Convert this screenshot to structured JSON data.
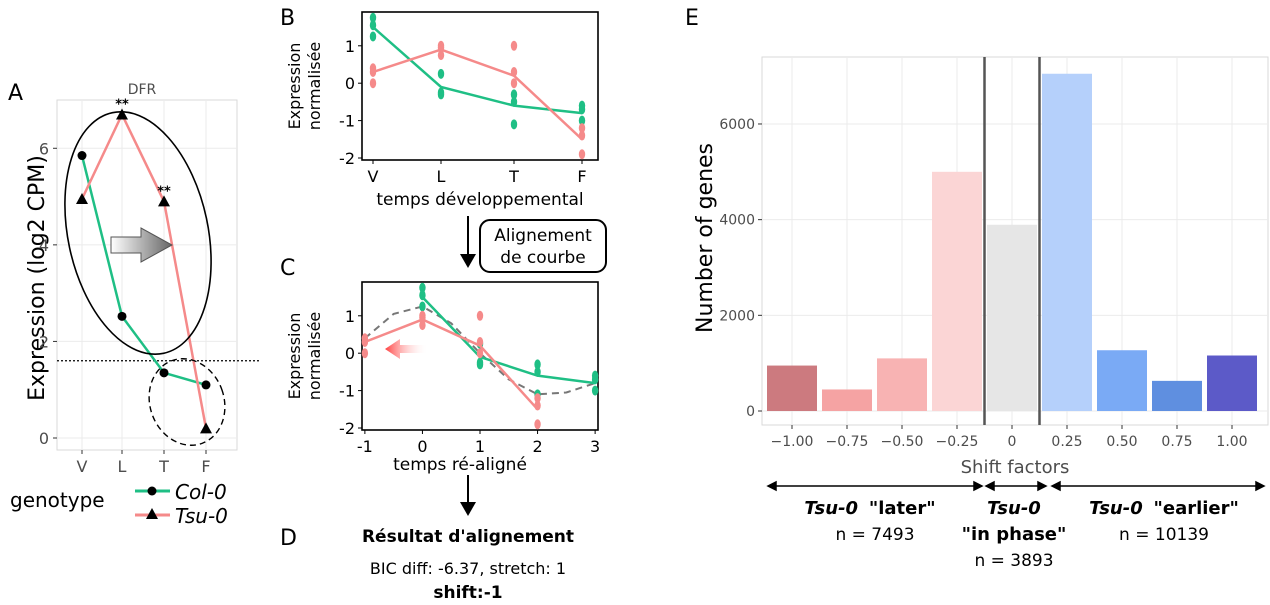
{
  "panel_letters": {
    "A": "A",
    "B": "B",
    "C": "C",
    "D": "D",
    "E": "E"
  },
  "colors": {
    "col0": "#1fbf85",
    "tsu0": "#f58a8a",
    "grid": "#ebebeb",
    "ref_line": "#000000"
  },
  "chart_data": [
    {
      "id": "A",
      "type": "line",
      "title": "DFR",
      "ylabel": "Expression (log2 CPM)",
      "categories": [
        "V",
        "L",
        "T",
        "F"
      ],
      "yticks": [
        0,
        2,
        4,
        6
      ],
      "ylim": [
        0,
        7.0
      ],
      "threshold_y": 1.6,
      "significance": [
        {
          "x": "L",
          "label": "**"
        },
        {
          "x": "T",
          "label": "**"
        }
      ],
      "series": [
        {
          "name": "Col-0",
          "values": [
            5.85,
            2.52,
            1.35,
            1.1
          ],
          "marker": "circle"
        },
        {
          "name": "Tsu-0",
          "values": [
            4.95,
            6.7,
            4.9,
            0.2
          ],
          "marker": "triangle"
        }
      ],
      "legend": {
        "title": "genotype",
        "placement": "bottom"
      }
    },
    {
      "id": "B",
      "type": "line",
      "ylabel": [
        "Expression",
        "normalisée"
      ],
      "xlabel": "temps développemental",
      "categories": [
        "V",
        "L",
        "T",
        "F"
      ],
      "yticks": [
        -2,
        -1,
        0,
        1
      ],
      "ylim": [
        -2,
        1.85
      ],
      "series": [
        {
          "name": "Col-0",
          "values": [
            1.5,
            -0.1,
            -0.6,
            -0.8
          ],
          "points": [
            [
              1.75,
              1.55,
              1.25
            ],
            [
              0.25,
              -0.25,
              -0.3
            ],
            [
              -1.1,
              -0.3,
              -0.5
            ],
            [
              -0.6,
              -0.7,
              -1.0
            ]
          ]
        },
        {
          "name": "Tsu-0",
          "values": [
            0.3,
            0.9,
            0.2,
            -1.5
          ],
          "points": [
            [
              0.0,
              0.3,
              0.4
            ],
            [
              0.75,
              0.95,
              1.0
            ],
            [
              0.0,
              0.3,
              1.0
            ],
            [
              -1.2,
              -1.4,
              -1.9
            ]
          ]
        }
      ]
    },
    {
      "id": "C",
      "type": "line",
      "ylabel": [
        "Expression",
        "normalisée"
      ],
      "xlabel": "temps ré-aligné",
      "xticks": [
        -1,
        0,
        1,
        2,
        3
      ],
      "xlim": [
        -1.05,
        3.05
      ],
      "yticks": [
        -2,
        -1,
        0,
        1
      ],
      "ylim": [
        -2,
        1.85
      ],
      "series": [
        {
          "name": "Col-0",
          "x": [
            0,
            1,
            2,
            3
          ],
          "values": [
            1.5,
            -0.1,
            -0.6,
            -0.8
          ],
          "points": [
            [
              1.75,
              1.55,
              1.25
            ],
            [
              0.25,
              -0.25,
              -0.3
            ],
            [
              -1.1,
              -0.3,
              -0.5
            ],
            [
              -0.6,
              -0.7,
              -1.0
            ]
          ]
        },
        {
          "name": "Tsu-0",
          "x": [
            -1,
            0,
            1,
            2
          ],
          "values": [
            0.3,
            0.9,
            0.2,
            -1.5
          ],
          "points": [
            [
              0.0,
              0.3,
              0.4
            ],
            [
              0.75,
              0.95,
              1.0
            ],
            [
              0.0,
              0.3,
              1.0
            ],
            [
              -1.2,
              -1.4,
              -1.9
            ]
          ]
        }
      ],
      "fit_curve": {
        "x": [
          -1,
          -0.5,
          0,
          0.5,
          1,
          1.5,
          2,
          2.5,
          3
        ],
        "values": [
          0.4,
          1.05,
          1.25,
          0.8,
          0.0,
          -0.7,
          -1.1,
          -1.05,
          -0.8
        ]
      }
    },
    {
      "id": "E",
      "type": "bar",
      "ylabel": "Number of genes",
      "xlabel": "Shift factors",
      "categories": [
        "−1.00",
        "−0.75",
        "−0.50",
        "−0.25",
        "0",
        "0.25",
        "0.50",
        "0.75",
        "1.00"
      ],
      "values": [
        950,
        450,
        1100,
        5000,
        3893,
        7050,
        1270,
        630,
        1160
      ],
      "bar_colors": [
        "#cc7a7f",
        "#f5a3a3",
        "#f8b3b3",
        "#fbd5d5",
        "#e6e6e6",
        "#b5d0fb",
        "#7aaaf5",
        "#5f8fe0",
        "#5c5ac8"
      ],
      "yticks": [
        0,
        2000,
        4000,
        6000
      ],
      "ylim": [
        0,
        7400
      ],
      "groups": [
        {
          "name": "Tsu-0",
          "desc": "\"later\"",
          "n": "n = 7493"
        },
        {
          "name": "Tsu-0",
          "desc": "\"in phase\"",
          "n": "n = 3893"
        },
        {
          "name": "Tsu-0",
          "desc": "\"earlier\"",
          "n": "n = 10139"
        }
      ]
    }
  ],
  "arrow_box": [
    "Alignement",
    "de courbe"
  ],
  "result": {
    "title": "Résultat d'alignement",
    "line1": "BIC diff: -6.37, stretch: 1",
    "line2": "shift:-1"
  }
}
